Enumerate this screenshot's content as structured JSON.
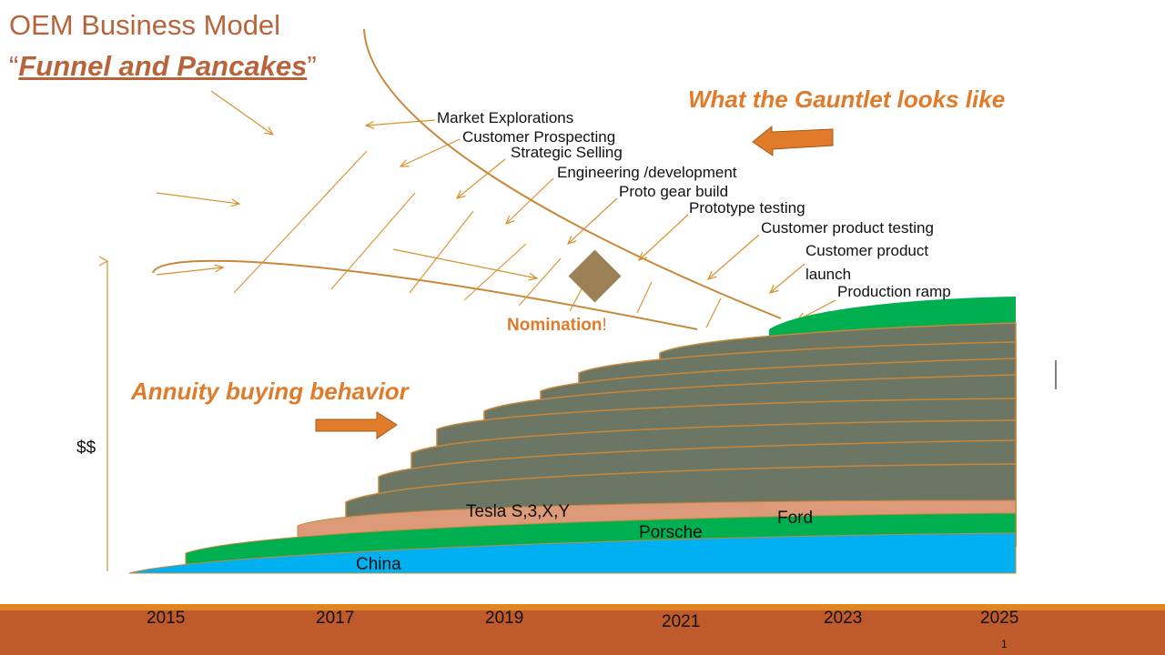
{
  "title": "OEM Business Model",
  "subtitle": {
    "open_quote": "“",
    "text": "Funnel and Pancakes",
    "close_quote": "”"
  },
  "headings": {
    "gauntlet": "What the Gauntlet looks like",
    "annuity": "Annuity buying behavior"
  },
  "stages": [
    "Market Explorations",
    "Customer Prospecting",
    "Strategic Selling",
    "Engineering /development",
    "Proto gear  build",
    "Prototype testing",
    "Customer product testing",
    "Customer product",
    "launch",
    "Production ramp"
  ],
  "nomination": {
    "text": "Nomination",
    "suffix": "!"
  },
  "y_axis_label": "$$",
  "layers": {
    "china": "China",
    "porsche": "Porsche",
    "tesla": "Tesla S,3,X,Y",
    "ford": "Ford"
  },
  "years": {
    "y2015": "2015",
    "y2017": "2017",
    "y2019": "2019",
    "y2021": "2021",
    "y2023": "2023",
    "y2025": "2025"
  },
  "page_number": "1",
  "colors": {
    "accent_orange": "#e07b2a",
    "title_brown": "#b8643a",
    "china_blue": "#00b0f0",
    "green": "#00b050",
    "salmon": "#dc9a7a",
    "pancake_gray": "#6b7665",
    "footer": "#bf5a2c"
  }
}
